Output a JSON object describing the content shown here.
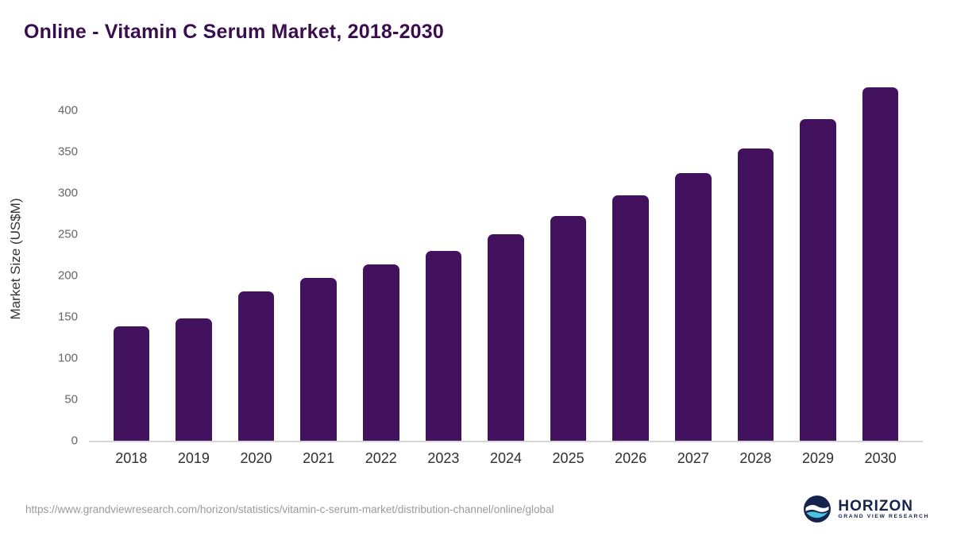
{
  "title": "Online - Vitamin C Serum Market, 2018-2030",
  "colors": {
    "bar": "#42125f",
    "title": "#3a0e4e",
    "axis_line": "#d6d6d6",
    "logo_navy": "#15234d",
    "logo_teal": "#4cc3e0"
  },
  "chart_data": {
    "type": "bar",
    "title": "Online - Vitamin C Serum Market, 2018-2030",
    "categories": [
      "2018",
      "2019",
      "2020",
      "2021",
      "2022",
      "2023",
      "2024",
      "2025",
      "2026",
      "2027",
      "2028",
      "2029",
      "2030"
    ],
    "values": [
      138,
      148,
      181,
      197,
      213,
      230,
      250,
      272,
      297,
      324,
      354,
      389,
      428
    ],
    "xlabel": "",
    "ylabel": "Market Size (US$M)",
    "ylim": [
      0,
      440
    ],
    "yticks": [
      0,
      50,
      100,
      150,
      200,
      250,
      300,
      350,
      400
    ],
    "grid": false,
    "legend_position": "none",
    "bar_color": "#42125f"
  },
  "footer": {
    "source_url": "https://www.grandviewresearch.com/horizon/statistics/vitamin-c-serum-market/distribution-channel/online/global",
    "logo": {
      "name": "HORIZON",
      "subtitle": "GRAND VIEW RESEARCH"
    }
  }
}
